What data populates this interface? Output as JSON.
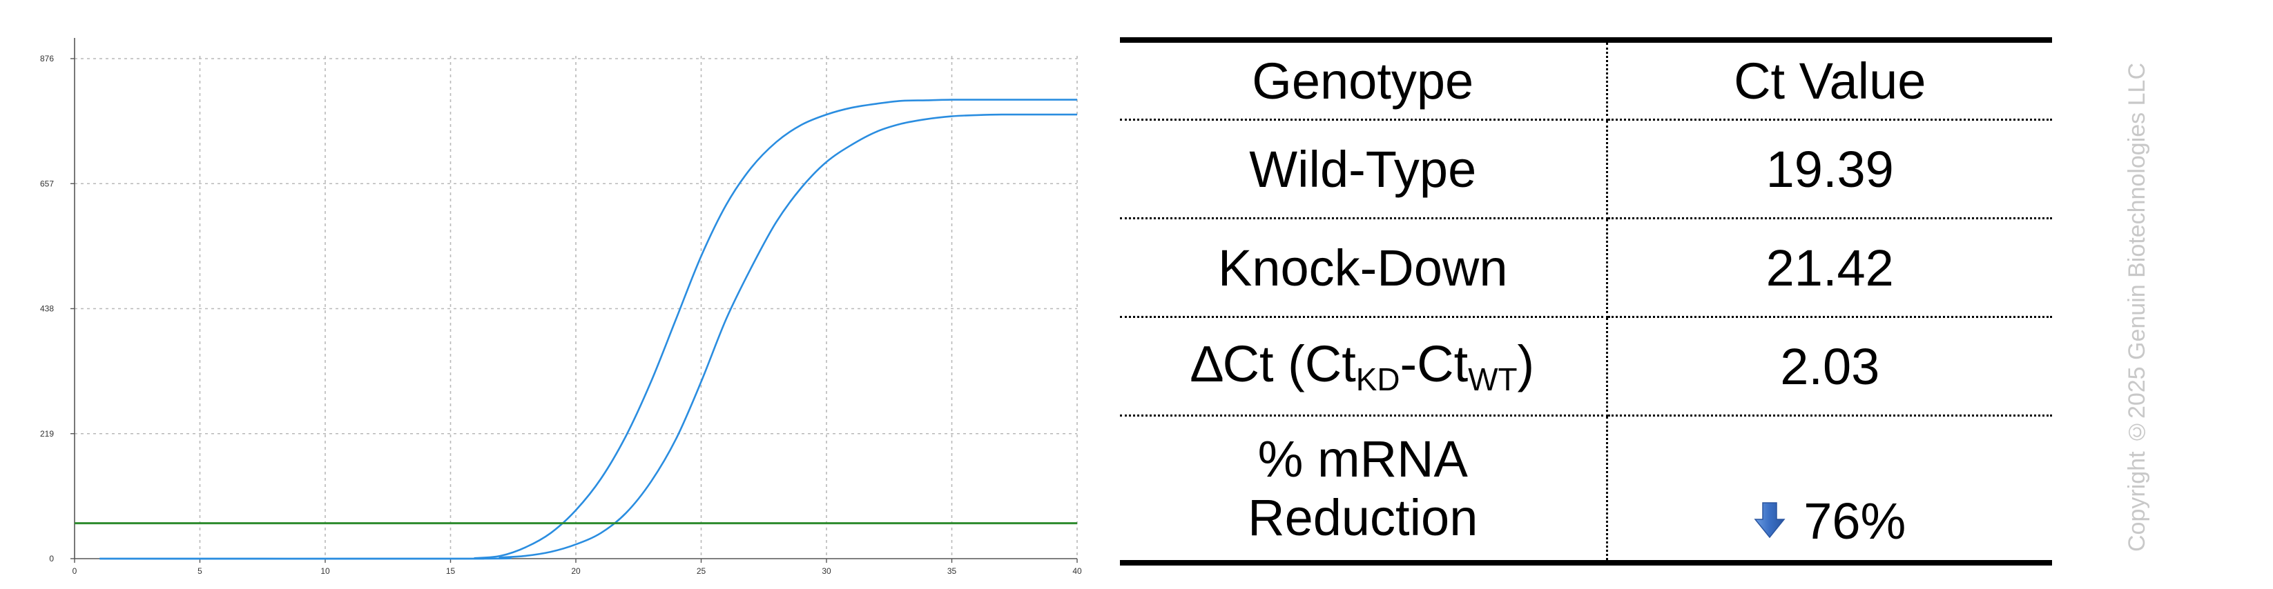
{
  "chart_data": {
    "type": "line",
    "x_ticks": [
      0,
      5,
      10,
      15,
      20,
      25,
      30,
      35,
      40
    ],
    "y_ticks": [
      0,
      219,
      438,
      657,
      876
    ],
    "xlim": [
      0,
      40
    ],
    "ylim": [
      0,
      876
    ],
    "grid": true,
    "threshold": 62,
    "threshold_color": "#2e8b2e",
    "curve_color": "#2a8de0",
    "series": [
      {
        "x": [
          1,
          15,
          16,
          17,
          18,
          19,
          20,
          21,
          22,
          23,
          24,
          25,
          26,
          27,
          28,
          29,
          30,
          31,
          32,
          33,
          34,
          35,
          36,
          37,
          38,
          39,
          40
        ],
        "values": [
          0,
          0,
          1,
          5,
          20,
          45,
          85,
          140,
          215,
          310,
          420,
          530,
          620,
          685,
          730,
          760,
          778,
          790,
          797,
          802,
          803,
          804,
          804,
          804,
          804,
          804,
          804
        ]
      },
      {
        "x": [
          1,
          16,
          17,
          18,
          19,
          20,
          21,
          22,
          23,
          24,
          25,
          26,
          27,
          28,
          29,
          30,
          31,
          32,
          33,
          34,
          35,
          36,
          37,
          38,
          39,
          40
        ],
        "values": [
          0,
          0,
          2,
          5,
          12,
          25,
          45,
          80,
          135,
          210,
          310,
          420,
          510,
          590,
          650,
          695,
          725,
          748,
          762,
          770,
          775,
          777,
          778,
          778,
          778,
          778
        ]
      }
    ]
  },
  "table": {
    "header": {
      "genotype": "Genotype",
      "ct_value": "Ct Value"
    },
    "rows": [
      {
        "genotype": "Wild-Type",
        "ct_value": "19.39"
      },
      {
        "genotype": "Knock-Down",
        "ct_value": "21.42"
      },
      {
        "delta_prefix": "∆Ct (Ct",
        "delta_sub1": "KD",
        "delta_mid": "-Ct",
        "delta_sub2": "WT",
        "delta_suffix": ")",
        "ct_value": "2.03"
      }
    ],
    "reduction": {
      "label_line1": "% mRNA",
      "label_line2": "Reduction",
      "value": "76%",
      "arrow_icon": "down-arrow-icon",
      "arrow_color": "#3a6fc4"
    }
  },
  "copyright": "Copyright ©2025 Genuin Biotechnologies LLC"
}
